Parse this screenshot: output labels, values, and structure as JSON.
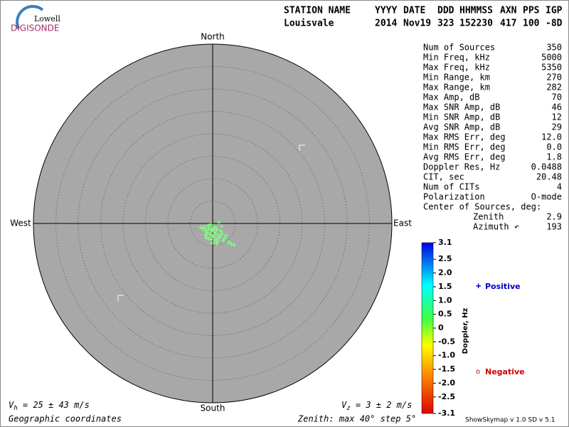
{
  "logo": {
    "top": "Lowell",
    "bottom": "DIGISONDE"
  },
  "header": {
    "labels": [
      "STATION NAME",
      "YYYY",
      "DATE",
      "DDD",
      "HHMMSS",
      "AXN",
      "PPS",
      "IGP"
    ],
    "values": [
      "Louisvale",
      "2014",
      "Nov19",
      "323",
      "152230",
      "417",
      "100",
      "-8D"
    ]
  },
  "stats": {
    "rows": [
      {
        "label": "Num of Sources",
        "value": "350"
      },
      {
        "label": "Min Freq, kHz",
        "value": "5000"
      },
      {
        "label": "Max Freq, kHz",
        "value": "5350"
      },
      {
        "label": "Min Range, km",
        "value": "270"
      },
      {
        "label": "Max Range, km",
        "value": "282"
      },
      {
        "label": "Max Amp, dB",
        "value": "70"
      },
      {
        "label": "Max SNR Amp, dB",
        "value": "46"
      },
      {
        "label": "Min SNR Amp, dB",
        "value": "12"
      },
      {
        "label": "Avg SNR Amp, dB",
        "value": "29"
      },
      {
        "label": "Max RMS Err, deg",
        "value": "12.0"
      },
      {
        "label": "Min RMS Err, deg",
        "value": "0.0"
      },
      {
        "label": "Avg RMS Err, deg",
        "value": "1.8"
      },
      {
        "label": "Doppler Res, Hz",
        "value": "0.0488"
      },
      {
        "label": "CIT, sec",
        "value": "20.48"
      },
      {
        "label": "Num of CITs",
        "value": "4"
      },
      {
        "label": "Polarization",
        "value": "O-mode"
      }
    ],
    "center": {
      "title": "Center of Sources, deg:",
      "rows": [
        {
          "label": "Zenith",
          "value": "2.9"
        },
        {
          "label": "Azimuth ↶",
          "value": "193"
        }
      ]
    }
  },
  "chart_data": {
    "type": "scatter",
    "directions": {
      "north": "North",
      "south": "South",
      "west": "West",
      "east": "East"
    },
    "x": [
      -2.1,
      -1.8,
      -1.5,
      -1.2,
      -0.9,
      -0.6,
      -0.3,
      0,
      0.3,
      0.6,
      0.9,
      1.2,
      1.5,
      1.8,
      2.1,
      -1.4,
      -0.8,
      -0.2,
      0.4,
      1.0,
      1.6,
      -1.0,
      -0.4,
      0.2,
      0.8,
      1.4,
      2.4,
      3.0,
      3.6,
      4.2,
      4.8,
      -2.6,
      -0.2,
      0.5,
      1.1,
      2.0,
      -1.6,
      0.0,
      0.9,
      2.6
    ],
    "y": [
      -1.2,
      -0.8,
      -1.6,
      -2.0,
      -1.1,
      -2.4,
      -1.5,
      -2.8,
      -1.9,
      -2.2,
      -1.4,
      -2.6,
      -3.0,
      -1.7,
      -2.3,
      -3.2,
      -3.4,
      -3.6,
      -3.1,
      -3.5,
      -2.9,
      -0.5,
      -0.2,
      -0.7,
      -1.0,
      0.2,
      -3.8,
      -2.7,
      -4.2,
      -4.6,
      -4.8,
      -0.9,
      -4.4,
      -4.0,
      -3.9,
      -0.6,
      -2.6,
      -1.3,
      -4.5,
      -3.3
    ],
    "color": "#80ff80",
    "xlim": [
      -40,
      40
    ],
    "ylim": [
      -40,
      40
    ],
    "rgrid": [
      5,
      10,
      15,
      20,
      25,
      30,
      35
    ],
    "colorbar": {
      "label": "Doppler, Hz",
      "lim": [
        -3.1,
        3.1
      ],
      "ticks": [
        3.1,
        2.5,
        {
          "value": 2,
          "label": "2.0"
        },
        1.5,
        {
          "value": 1,
          "label": "1.0"
        },
        0.5,
        0,
        -0.5,
        {
          "value": -1,
          "label": "-1.0"
        },
        -1.5,
        {
          "value": -2,
          "label": "-2.0"
        },
        -2.5,
        -3.1
      ]
    },
    "legend": {
      "positive": "Positive",
      "negative": "Negative"
    }
  },
  "footer": {
    "vh_symbol": "V",
    "vh_sub": "h",
    "vh_text": " = 25 ± 43 m/s",
    "vz_symbol": "V",
    "vz_sub": "z",
    "vz_text": " = 3 ± 2 m/s",
    "coordinates": "Geographic coordinates",
    "zenith": "Zenith: max 40°  step 5°",
    "version": "ShowSkymap v 1.0  SD v 5.1"
  }
}
